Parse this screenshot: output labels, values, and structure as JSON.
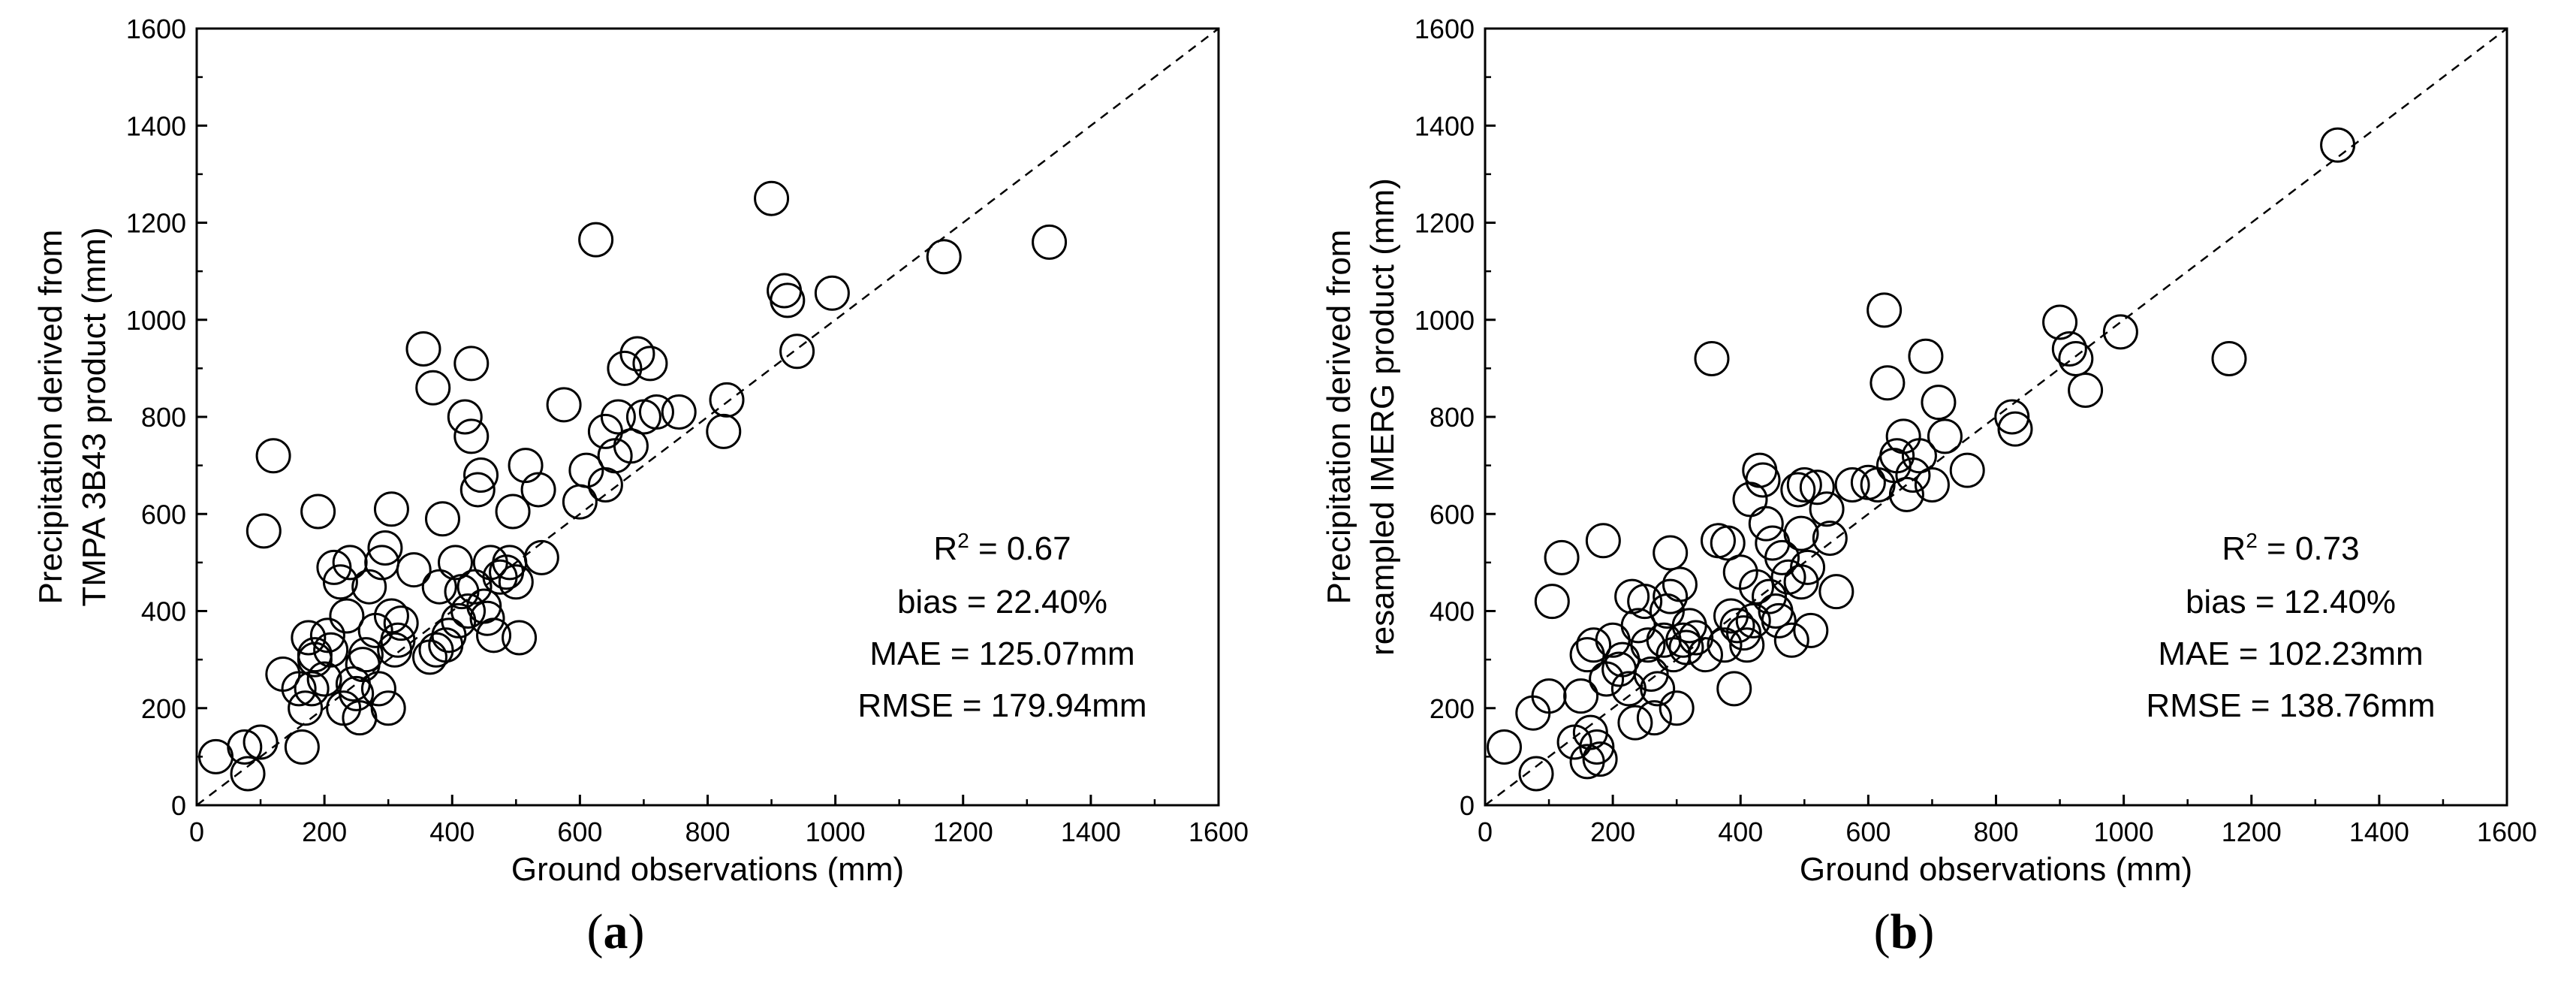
{
  "chart_data": [
    {
      "type": "scatter",
      "panel_label": "a",
      "xlabel": "Ground observations (mm)",
      "ylabel_lines": [
        "Precipitation derived from",
        "TMPA 3B43 product (mm)"
      ],
      "xlim": [
        0,
        1600
      ],
      "ylim": [
        0,
        1600
      ],
      "xticks": [
        "0",
        "200",
        "400",
        "600",
        "800",
        "1000",
        "1200",
        "1400",
        "1600"
      ],
      "yticks": [
        "0",
        "200",
        "400",
        "600",
        "800",
        "1000",
        "1200",
        "1400",
        "1600"
      ],
      "reference_line": "1:1 dashed",
      "stats": {
        "r2_prefix": "R",
        "r2_sup": "2",
        "r2_value": " = 0.67",
        "bias": "bias = 22.40%",
        "mae": "MAE = 125.07mm",
        "rmse": "RMSE = 179.94mm"
      },
      "points": [
        [
          30,
          100
        ],
        [
          80,
          65
        ],
        [
          75,
          120
        ],
        [
          100,
          130
        ],
        [
          105,
          565
        ],
        [
          120,
          720
        ],
        [
          135,
          270
        ],
        [
          160,
          240
        ],
        [
          165,
          120
        ],
        [
          170,
          200
        ],
        [
          175,
          345
        ],
        [
          180,
          240
        ],
        [
          185,
          300
        ],
        [
          185,
          310
        ],
        [
          190,
          605
        ],
        [
          200,
          260
        ],
        [
          205,
          350
        ],
        [
          210,
          320
        ],
        [
          215,
          490
        ],
        [
          225,
          460
        ],
        [
          230,
          200
        ],
        [
          235,
          390
        ],
        [
          240,
          500
        ],
        [
          245,
          250
        ],
        [
          250,
          230
        ],
        [
          255,
          180
        ],
        [
          260,
          290
        ],
        [
          265,
          310
        ],
        [
          270,
          450
        ],
        [
          280,
          360
        ],
        [
          285,
          240
        ],
        [
          290,
          500
        ],
        [
          295,
          530
        ],
        [
          300,
          200
        ],
        [
          305,
          610
        ],
        [
          305,
          390
        ],
        [
          310,
          320
        ],
        [
          315,
          340
        ],
        [
          320,
          375
        ],
        [
          340,
          485
        ],
        [
          355,
          940
        ],
        [
          365,
          305
        ],
        [
          370,
          860
        ],
        [
          375,
          320
        ],
        [
          380,
          450
        ],
        [
          385,
          590
        ],
        [
          390,
          330
        ],
        [
          395,
          350
        ],
        [
          405,
          500
        ],
        [
          410,
          380
        ],
        [
          415,
          440
        ],
        [
          420,
          800
        ],
        [
          425,
          400
        ],
        [
          430,
          760
        ],
        [
          430,
          910
        ],
        [
          435,
          450
        ],
        [
          440,
          650
        ],
        [
          445,
          680
        ],
        [
          450,
          410
        ],
        [
          455,
          385
        ],
        [
          460,
          500
        ],
        [
          465,
          350
        ],
        [
          475,
          470
        ],
        [
          485,
          480
        ],
        [
          490,
          500
        ],
        [
          495,
          605
        ],
        [
          500,
          460
        ],
        [
          505,
          345
        ],
        [
          515,
          700
        ],
        [
          535,
          650
        ],
        [
          540,
          510
        ],
        [
          575,
          825
        ],
        [
          600,
          625
        ],
        [
          610,
          690
        ],
        [
          625,
          1165
        ],
        [
          640,
          660
        ],
        [
          640,
          770
        ],
        [
          655,
          720
        ],
        [
          660,
          800
        ],
        [
          670,
          900
        ],
        [
          680,
          740
        ],
        [
          690,
          930
        ],
        [
          700,
          800
        ],
        [
          710,
          910
        ],
        [
          720,
          810
        ],
        [
          755,
          810
        ],
        [
          825,
          770
        ],
        [
          830,
          835
        ],
        [
          900,
          1250
        ],
        [
          920,
          1060
        ],
        [
          925,
          1040
        ],
        [
          940,
          935
        ],
        [
          995,
          1055
        ],
        [
          1170,
          1130
        ],
        [
          1335,
          1160
        ]
      ]
    },
    {
      "type": "scatter",
      "panel_label": "b",
      "xlabel": "Ground observations (mm)",
      "ylabel_lines": [
        "Precipitation derived from",
        "resampled IMERG product (mm)"
      ],
      "xlim": [
        0,
        1600
      ],
      "ylim": [
        0,
        1600
      ],
      "xticks": [
        "0",
        "200",
        "400",
        "600",
        "800",
        "1000",
        "1200",
        "1400",
        "1600"
      ],
      "yticks": [
        "0",
        "200",
        "400",
        "600",
        "800",
        "1000",
        "1200",
        "1400",
        "1600"
      ],
      "reference_line": "1:1 dashed",
      "stats": {
        "r2_prefix": "R",
        "r2_sup": "2",
        "r2_value": " = 0.73",
        "bias": "bias = 12.40%",
        "mae": "MAE = 102.23mm",
        "rmse": "RMSE = 138.76mm"
      },
      "points": [
        [
          30,
          120
        ],
        [
          75,
          190
        ],
        [
          80,
          65
        ],
        [
          100,
          225
        ],
        [
          105,
          420
        ],
        [
          120,
          510
        ],
        [
          140,
          130
        ],
        [
          150,
          225
        ],
        [
          160,
          310
        ],
        [
          160,
          90
        ],
        [
          165,
          150
        ],
        [
          170,
          330
        ],
        [
          175,
          120
        ],
        [
          180,
          95
        ],
        [
          185,
          545
        ],
        [
          190,
          260
        ],
        [
          200,
          340
        ],
        [
          210,
          280
        ],
        [
          215,
          300
        ],
        [
          225,
          240
        ],
        [
          230,
          430
        ],
        [
          235,
          170
        ],
        [
          240,
          370
        ],
        [
          250,
          420
        ],
        [
          255,
          330
        ],
        [
          260,
          270
        ],
        [
          265,
          180
        ],
        [
          270,
          240
        ],
        [
          280,
          340
        ],
        [
          285,
          400
        ],
        [
          290,
          430
        ],
        [
          290,
          520
        ],
        [
          295,
          310
        ],
        [
          300,
          200
        ],
        [
          305,
          455
        ],
        [
          310,
          340
        ],
        [
          315,
          325
        ],
        [
          320,
          370
        ],
        [
          330,
          345
        ],
        [
          345,
          310
        ],
        [
          355,
          920
        ],
        [
          365,
          545
        ],
        [
          375,
          330
        ],
        [
          380,
          540
        ],
        [
          385,
          390
        ],
        [
          390,
          240
        ],
        [
          395,
          370
        ],
        [
          400,
          480
        ],
        [
          405,
          355
        ],
        [
          410,
          330
        ],
        [
          415,
          630
        ],
        [
          420,
          380
        ],
        [
          425,
          450
        ],
        [
          430,
          690
        ],
        [
          435,
          670
        ],
        [
          440,
          580
        ],
        [
          445,
          430
        ],
        [
          450,
          540
        ],
        [
          455,
          400
        ],
        [
          460,
          380
        ],
        [
          465,
          510
        ],
        [
          475,
          470
        ],
        [
          480,
          340
        ],
        [
          490,
          650
        ],
        [
          495,
          560
        ],
        [
          495,
          460
        ],
        [
          500,
          660
        ],
        [
          505,
          490
        ],
        [
          510,
          360
        ],
        [
          520,
          655
        ],
        [
          535,
          610
        ],
        [
          540,
          550
        ],
        [
          550,
          440
        ],
        [
          575,
          660
        ],
        [
          600,
          665
        ],
        [
          615,
          660
        ],
        [
          625,
          1020
        ],
        [
          630,
          870
        ],
        [
          640,
          700
        ],
        [
          645,
          720
        ],
        [
          655,
          760
        ],
        [
          660,
          640
        ],
        [
          670,
          680
        ],
        [
          680,
          720
        ],
        [
          690,
          925
        ],
        [
          700,
          660
        ],
        [
          710,
          830
        ],
        [
          720,
          760
        ],
        [
          755,
          690
        ],
        [
          825,
          800
        ],
        [
          830,
          775
        ],
        [
          900,
          995
        ],
        [
          915,
          940
        ],
        [
          925,
          920
        ],
        [
          940,
          855
        ],
        [
          995,
          975
        ],
        [
          1165,
          920
        ],
        [
          1335,
          1360
        ]
      ]
    }
  ]
}
